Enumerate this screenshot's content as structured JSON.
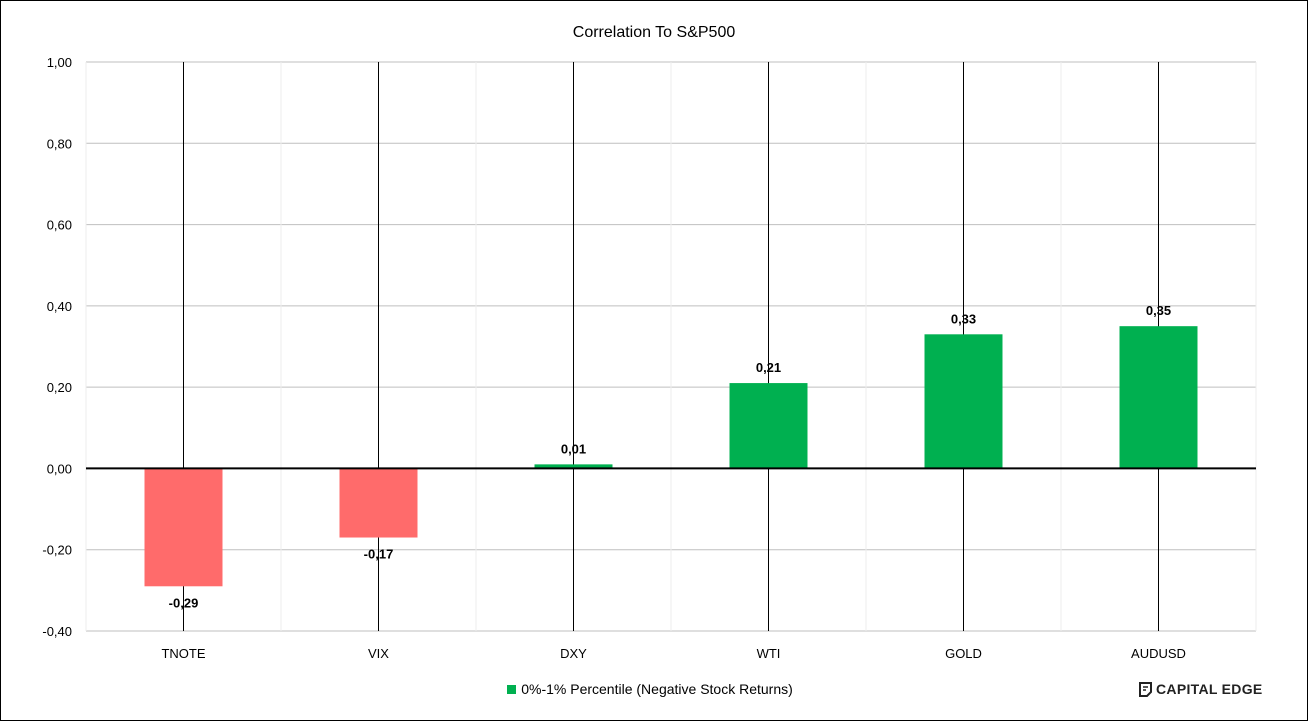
{
  "chart_data": {
    "type": "bar",
    "title": "Correlation To S&P500",
    "categories": [
      "TNOTE",
      "VIX",
      "DXY",
      "WTI",
      "GOLD",
      "AUDUSD"
    ],
    "series": [
      {
        "name": "0%-1% Percentile (Negative Stock Returns)",
        "values": [
          -0.29,
          -0.17,
          0.01,
          0.21,
          0.33,
          0.35
        ],
        "data_labels": [
          "-0,29",
          "-0,17",
          "0,01",
          "0,21",
          "0,33",
          "0,35"
        ]
      }
    ],
    "ylim": [
      -0.4,
      1.0
    ],
    "y_ticks": [
      1.0,
      0.8,
      0.6,
      0.4,
      0.2,
      0.0,
      -0.2,
      -0.4
    ],
    "y_tick_labels": [
      "1,00",
      "0,80",
      "0,60",
      "0,40",
      "0,20",
      "0,00",
      "-0,20",
      "-0,40"
    ],
    "grid": true,
    "legend_position": "bottom",
    "colors": {
      "positive": "#00b050",
      "negative": "#ff6b6b",
      "gridline": "#bfbfbf",
      "category_line": "#000000",
      "axis": "#000000"
    }
  },
  "brand": {
    "name": "CAPITAL EDGE"
  }
}
